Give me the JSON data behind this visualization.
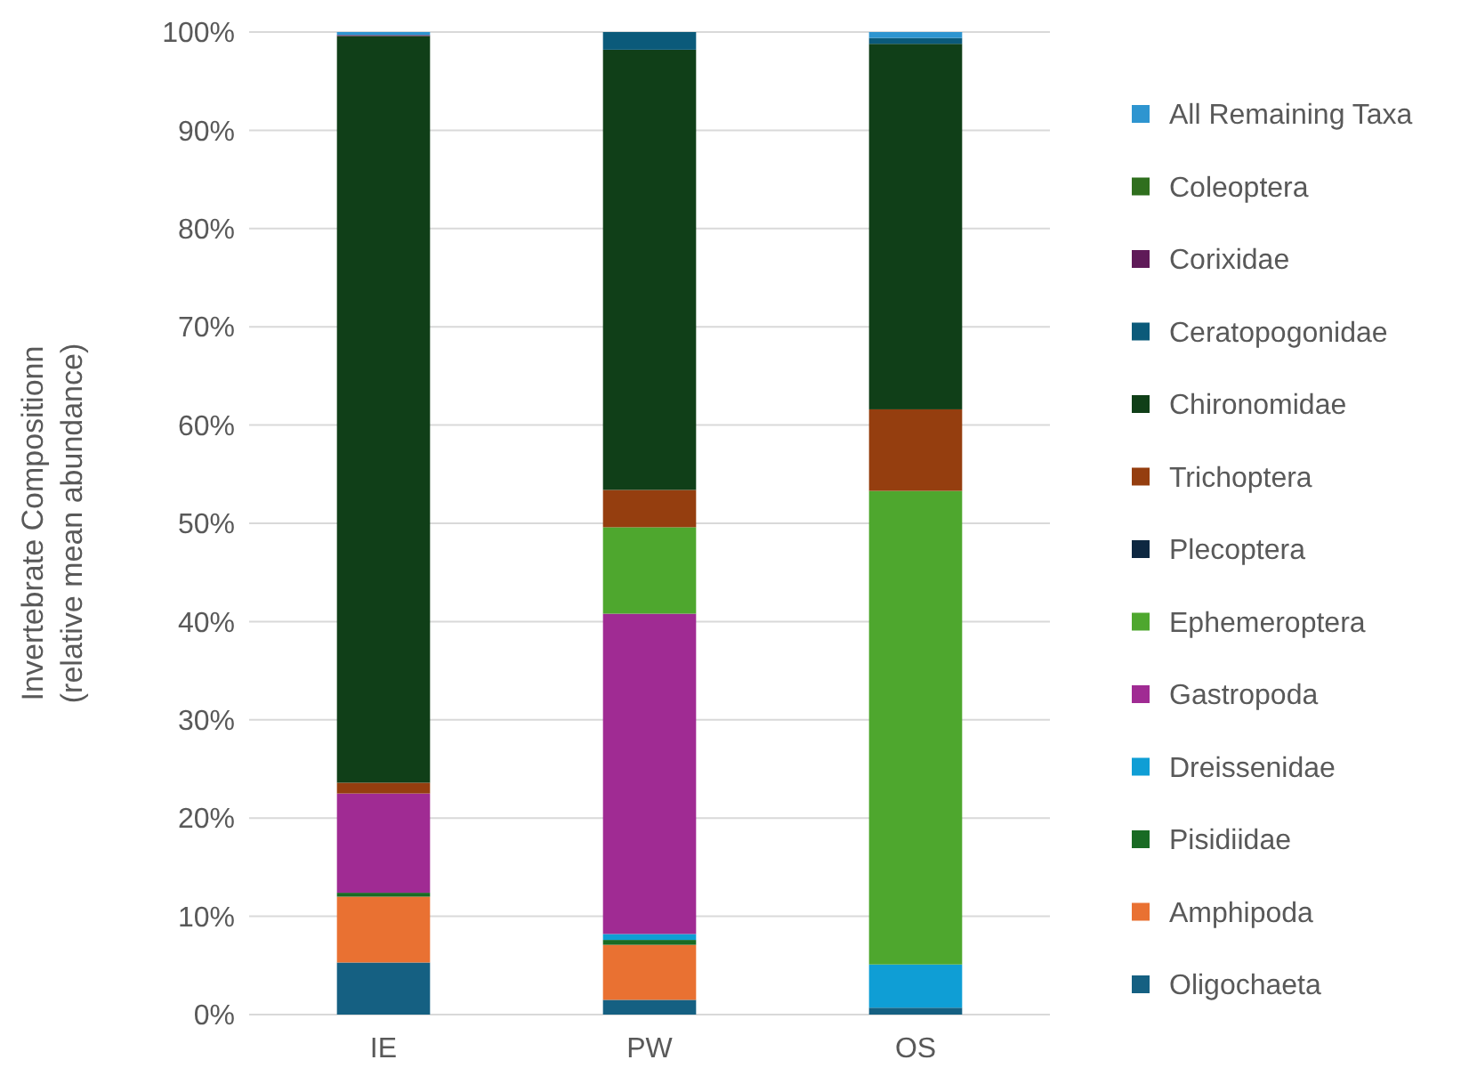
{
  "chart_data": {
    "type": "bar",
    "stacked": true,
    "ylabel": "Invertebrate Compositionn\n(relative mean abundance)",
    "categories": [
      "IE",
      "PW",
      "OS"
    ],
    "series": [
      {
        "name": "Oligochaeta",
        "color": "#156082",
        "values": [
          5.3,
          1.5,
          0.7
        ]
      },
      {
        "name": "Amphipoda",
        "color": "#e97132",
        "values": [
          6.7,
          5.6,
          0
        ]
      },
      {
        "name": "Pisidiidae",
        "color": "#196b24",
        "values": [
          0.4,
          0.5,
          0
        ]
      },
      {
        "name": "Dreissenidae",
        "color": "#0f9ed5",
        "values": [
          0,
          0.6,
          4.4
        ]
      },
      {
        "name": "Gastropoda",
        "color": "#a02b93",
        "values": [
          10.1,
          32.6,
          0
        ]
      },
      {
        "name": "Ephemeroptera",
        "color": "#4ea72e",
        "values": [
          0,
          8.8,
          48.2
        ]
      },
      {
        "name": "Plecoptera",
        "color": "#0e2841",
        "values": [
          0,
          0,
          0
        ]
      },
      {
        "name": "Trichoptera",
        "color": "#953e0f",
        "values": [
          1.1,
          3.8,
          8.3
        ]
      },
      {
        "name": "Chironomidae",
        "color": "#103f18",
        "values": [
          76.0,
          44.8,
          37.2
        ]
      },
      {
        "name": "Ceratopogonidae",
        "color": "#0b5a7a",
        "values": [
          0,
          1.8,
          0.6
        ]
      },
      {
        "name": "Corixidae",
        "color": "#5f1a58",
        "values": [
          0.1,
          0,
          0
        ]
      },
      {
        "name": "Coleoptera",
        "color": "#2f6f1e",
        "values": [
          0,
          0,
          0
        ]
      },
      {
        "name": "All Remaining Taxa",
        "color": "#2e95d0",
        "values": [
          0.3,
          0,
          0.6
        ]
      }
    ],
    "ylim": [
      0,
      100
    ],
    "yticks": [
      {
        "value": 0,
        "label": "0%"
      },
      {
        "value": 10,
        "label": "10%"
      },
      {
        "value": 20,
        "label": "20%"
      },
      {
        "value": 30,
        "label": "30%"
      },
      {
        "value": 40,
        "label": "40%"
      },
      {
        "value": 50,
        "label": "50%"
      },
      {
        "value": 60,
        "label": "60%"
      },
      {
        "value": 70,
        "label": "70%"
      },
      {
        "value": 80,
        "label": "80%"
      },
      {
        "value": 90,
        "label": "90%"
      },
      {
        "value": 100,
        "label": "100%"
      }
    ],
    "grid": "y",
    "legend": "right"
  }
}
